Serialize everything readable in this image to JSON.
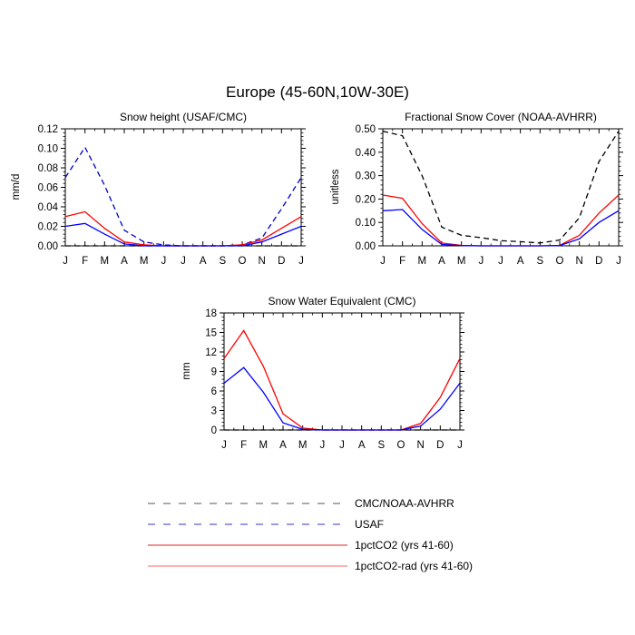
{
  "figure": {
    "title": "Europe (45-60N,10W-30E)"
  },
  "colors": {
    "obs": "#000000",
    "usaf": "#0000cc",
    "pct": "#0000ff",
    "rad": "#ff0000"
  },
  "legend": [
    {
      "key": "obs",
      "label": "CMC/NOAA-AVHRR",
      "color": "#555555",
      "dashed": true
    },
    {
      "key": "usaf",
      "label": "USAF",
      "color": "#3333cc",
      "dashed": true
    },
    {
      "key": "pct",
      "label": "1pctCO2 (yrs 41-60)",
      "color": "#dd2222",
      "dashed": false
    },
    {
      "key": "rad",
      "label": "1pctCO2-rad (yrs 41-60)",
      "color": "#ff6666",
      "dashed": false
    }
  ],
  "chart_data": [
    {
      "id": "snow-height",
      "type": "line",
      "title": "Snow height (USAF/CMC)",
      "ylabel": "mm/d",
      "xlabel": "",
      "categories": [
        "J",
        "F",
        "M",
        "A",
        "M",
        "J",
        "J",
        "A",
        "S",
        "O",
        "N",
        "D",
        "J"
      ],
      "ylim": [
        0,
        0.12
      ],
      "yticks": [
        0,
        0.02,
        0.04,
        0.06,
        0.08,
        0.1,
        0.12
      ],
      "ytick_labels": [
        "0.00",
        "0.02",
        "0.04",
        "0.06",
        "0.08",
        "0.10",
        "0.12"
      ],
      "series": [
        {
          "key": "obs",
          "color": "#000000",
          "dashed": true,
          "values": [
            0,
            0,
            0,
            0,
            0,
            0,
            0,
            0,
            0,
            0,
            0,
            0,
            0
          ]
        },
        {
          "key": "usaf",
          "color": "#0000cc",
          "dashed": true,
          "values": [
            0.07,
            0.101,
            0.062,
            0.016,
            0.004,
            0.001,
            0.0,
            0.0,
            0.0,
            0.001,
            0.008,
            0.038,
            0.07
          ]
        },
        {
          "key": "rad",
          "color": "#ff0000",
          "dashed": false,
          "values": [
            0.03,
            0.035,
            0.018,
            0.004,
            0.001,
            0.0,
            0.0,
            0.0,
            0.0,
            0.001,
            0.006,
            0.018,
            0.03
          ]
        },
        {
          "key": "pct",
          "color": "#0000ff",
          "dashed": false,
          "values": [
            0.02,
            0.023,
            0.012,
            0.002,
            0.0,
            0.0,
            0.0,
            0.0,
            0.0,
            0.0,
            0.004,
            0.012,
            0.02
          ]
        }
      ]
    },
    {
      "id": "snow-cover",
      "type": "line",
      "title": "Fractional Snow Cover (NOAA-AVHRR)",
      "ylabel": "unitless",
      "xlabel": "",
      "categories": [
        "J",
        "F",
        "M",
        "A",
        "M",
        "J",
        "J",
        "A",
        "S",
        "O",
        "N",
        "D",
        "J"
      ],
      "ylim": [
        0,
        0.5
      ],
      "yticks": [
        0,
        0.1,
        0.2,
        0.3,
        0.4,
        0.5
      ],
      "ytick_labels": [
        "0.00",
        "0.10",
        "0.20",
        "0.30",
        "0.40",
        "0.50"
      ],
      "series": [
        {
          "key": "obs",
          "color": "#000000",
          "dashed": true,
          "values": [
            0.49,
            0.47,
            0.3,
            0.08,
            0.045,
            0.035,
            0.022,
            0.018,
            0.012,
            0.025,
            0.12,
            0.36,
            0.49
          ]
        },
        {
          "key": "rad",
          "color": "#ff0000",
          "dashed": false,
          "values": [
            0.217,
            0.203,
            0.095,
            0.012,
            0.002,
            0.0,
            0.0,
            0.0,
            0.0,
            0.002,
            0.045,
            0.14,
            0.217
          ]
        },
        {
          "key": "pct",
          "color": "#0000ff",
          "dashed": false,
          "values": [
            0.15,
            0.155,
            0.07,
            0.006,
            0.001,
            0.0,
            0.0,
            0.0,
            0.0,
            0.001,
            0.03,
            0.1,
            0.15
          ]
        }
      ]
    },
    {
      "id": "swe",
      "type": "line",
      "title": "Snow Water Equivalent (CMC)",
      "ylabel": "mm",
      "xlabel": "",
      "categories": [
        "J",
        "F",
        "M",
        "A",
        "M",
        "J",
        "J",
        "A",
        "S",
        "O",
        "N",
        "D",
        "J"
      ],
      "ylim": [
        0,
        18
      ],
      "yticks": [
        0,
        3,
        6,
        9,
        12,
        15,
        18
      ],
      "ytick_labels": [
        "0",
        "3",
        "6",
        "9",
        "12",
        "15",
        "18"
      ],
      "series": [
        {
          "key": "obs",
          "color": "#000000",
          "dashed": true,
          "values": [
            0,
            0,
            0,
            0,
            0,
            0,
            0,
            0,
            0,
            0,
            0,
            0,
            0
          ]
        },
        {
          "key": "rad",
          "color": "#ff0000",
          "dashed": false,
          "values": [
            11.0,
            15.3,
            9.8,
            2.5,
            0.3,
            0.0,
            0.0,
            0.0,
            0.0,
            0.0,
            1.0,
            5.0,
            11.0
          ]
        },
        {
          "key": "pct",
          "color": "#0000ff",
          "dashed": false,
          "values": [
            7.2,
            9.6,
            5.8,
            1.1,
            0.1,
            0.0,
            0.0,
            0.0,
            0.0,
            0.0,
            0.6,
            3.2,
            7.2
          ]
        }
      ]
    }
  ]
}
